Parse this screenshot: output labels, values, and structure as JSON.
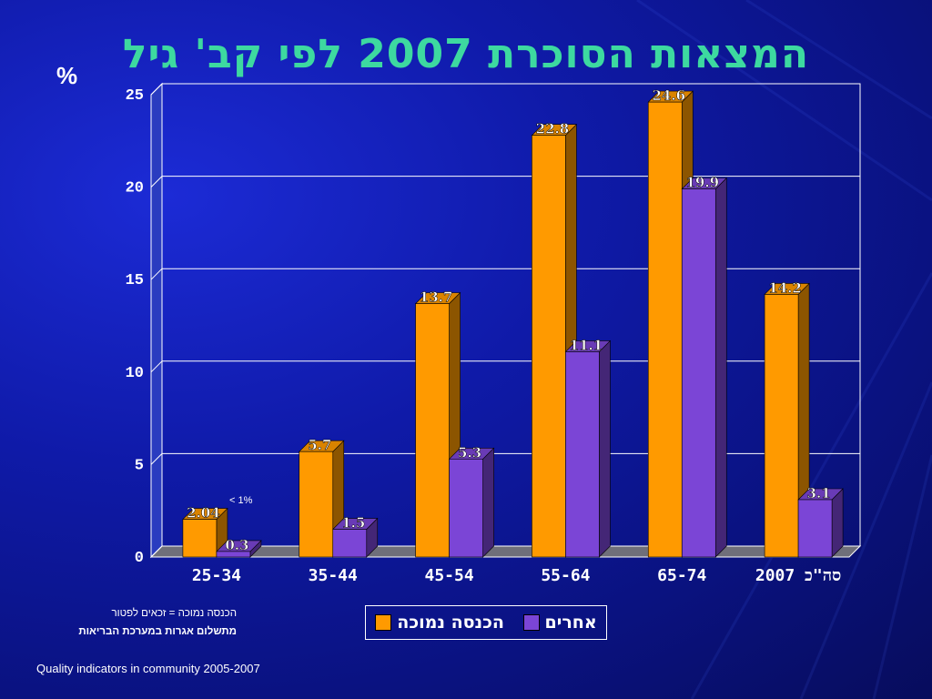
{
  "title": "המצאות הסוכרת 2007 לפי קב' גיל",
  "y_unit_label": "%",
  "callout": "< 1%",
  "note": {
    "line1": "הכנסה נמוכה = זכאים לפטור",
    "line2": "מתשלום אגרות במערכת הבריאות"
  },
  "footer": "Quality indicators in community 2005-2007",
  "colors": {
    "series1": "#ff9a00",
    "series2": "#7b45d6",
    "background": "#0f1aa8",
    "title": "#3dd9a0"
  },
  "chart_data": {
    "type": "bar",
    "title": "המצאות הסוכרת 2007 לפי קב' גיל",
    "ylabel": "%",
    "xlabel": "",
    "ylim": [
      0,
      25
    ],
    "yticks": [
      0,
      5,
      10,
      15,
      20,
      25
    ],
    "grid": true,
    "legend_position": "bottom",
    "categories": [
      "25-34",
      "35-44",
      "45-54",
      "55-64",
      "65-74",
      "סה\"כ 2007"
    ],
    "series": [
      {
        "name": "הכנסה נמוכה",
        "values": [
          2.04,
          5.7,
          13.7,
          22.8,
          24.6,
          14.2
        ],
        "labels": [
          "2.04",
          "5.7",
          "13.7",
          "22.8",
          "24.6",
          "14.2"
        ]
      },
      {
        "name": "אחרים",
        "values": [
          0.3,
          1.5,
          5.3,
          11.1,
          19.9,
          3.1
        ],
        "labels": [
          "0.3",
          "1.5",
          "5.3",
          "11.1",
          "19.9",
          "3.1"
        ]
      }
    ]
  }
}
